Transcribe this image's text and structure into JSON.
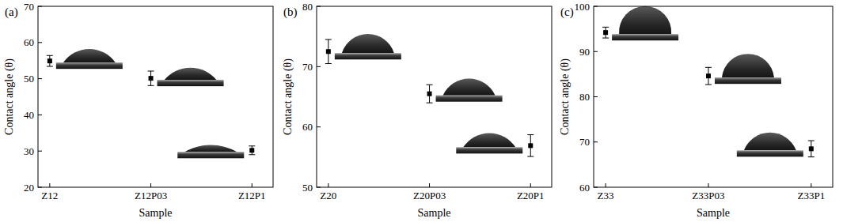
{
  "chart_data": [
    {
      "type": "scatter",
      "label": "(a)",
      "x_label": "Sample",
      "y_label": "Contact angle (θ)",
      "categories": [
        "Z12",
        "Z12P03",
        "Z12P1"
      ],
      "values": [
        54.9,
        50.1,
        30.2
      ],
      "errors": [
        1.5,
        2.0,
        1.2
      ],
      "color": "#000000",
      "marker": "square",
      "ylim": [
        20,
        70
      ],
      "yticks": [
        20,
        30,
        40,
        50,
        60,
        70
      ]
    },
    {
      "type": "scatter",
      "label": "(b)",
      "x_label": "Sample",
      "y_label": "Contact angle (θ)",
      "categories": [
        "Z20",
        "Z20P03",
        "Z20P1"
      ],
      "values": [
        72.5,
        65.5,
        56.9
      ],
      "errors": [
        2.0,
        1.5,
        1.8
      ],
      "color": "#000000",
      "marker": "square",
      "ylim": [
        50,
        80
      ],
      "yticks": [
        50,
        60,
        70,
        80
      ]
    },
    {
      "type": "scatter",
      "label": "(c)",
      "x_label": "Sample",
      "y_label": "Contact angle (θ)",
      "categories": [
        "Z33",
        "Z33P03",
        "Z33P1"
      ],
      "values": [
        94.2,
        84.6,
        68.5
      ],
      "errors": [
        1.2,
        1.9,
        1.8
      ],
      "color": "#000000",
      "marker": "square",
      "ylim": [
        60,
        100
      ],
      "yticks": [
        60,
        70,
        80,
        90,
        100
      ]
    }
  ]
}
